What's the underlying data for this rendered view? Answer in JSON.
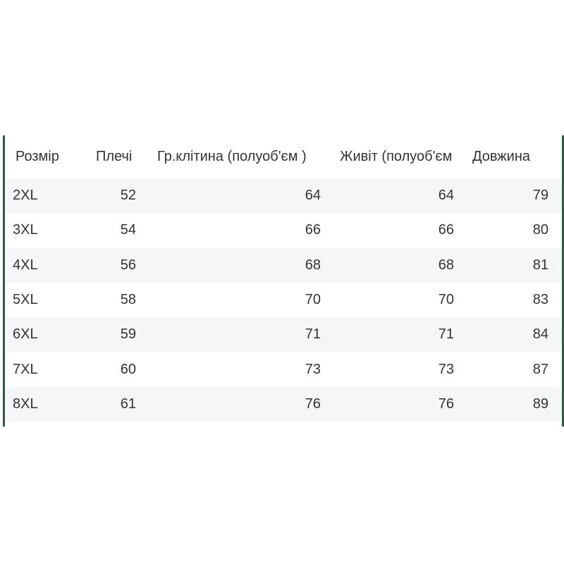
{
  "table": {
    "headers": [
      "Розмір",
      "Плечі",
      "Гр.клітина  (полуоб'єм )",
      "Живіт (полуоб'єм",
      "Довжина"
    ],
    "rows": [
      [
        "2XL",
        "52",
        "64",
        "64",
        "79"
      ],
      [
        "3XL",
        "54",
        "66",
        "66",
        "80"
      ],
      [
        "4XL",
        "56",
        "68",
        "68",
        "81"
      ],
      [
        "5XL",
        "58",
        "70",
        "70",
        "83"
      ],
      [
        "6XL",
        "59",
        "71",
        "71",
        "84"
      ],
      [
        "7XL",
        "60",
        "73",
        "73",
        "87"
      ],
      [
        "8XL",
        "61",
        "76",
        "76",
        "89"
      ]
    ],
    "border_color": "#2f5a45",
    "stripe_color": "#f5f6f8"
  }
}
